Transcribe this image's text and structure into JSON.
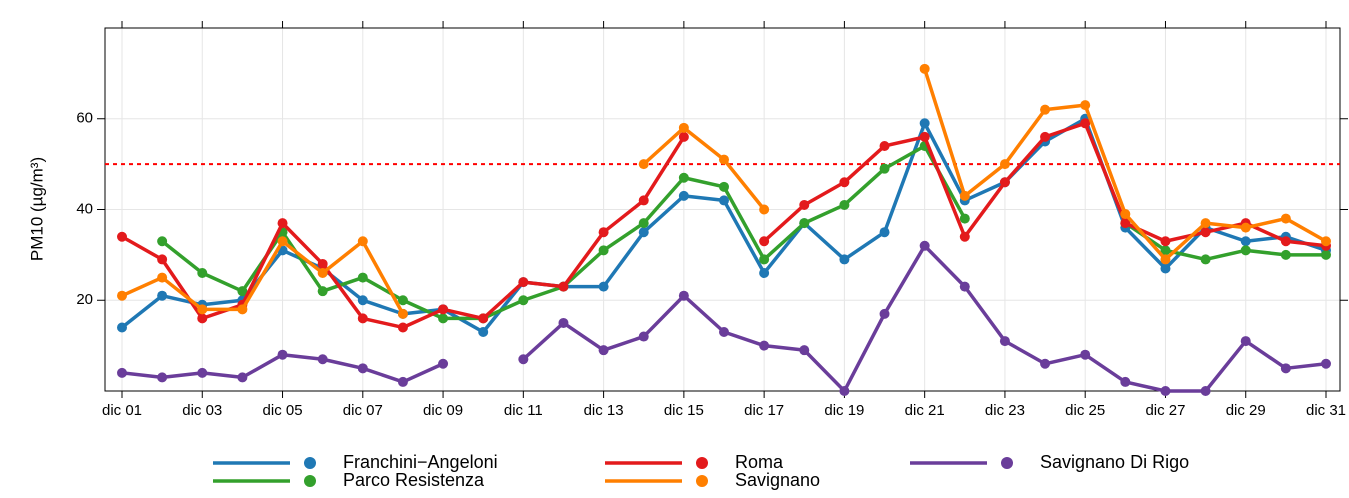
{
  "chart_data": {
    "type": "line",
    "y_label": "PM10 (µg/m³)",
    "categories": [
      "dic 01",
      null,
      "dic 03",
      null,
      "dic 05",
      null,
      "dic 07",
      null,
      "dic 09",
      null,
      "dic 11",
      null,
      "dic 13",
      null,
      "dic 15",
      null,
      "dic 17",
      null,
      "dic 19",
      null,
      "dic 21",
      null,
      "dic 23",
      null,
      "dic 25",
      null,
      "dic 27",
      null,
      "dic 29",
      null,
      "dic 31"
    ],
    "series": [
      {
        "name": "Franchini−Angeloni",
        "color": "#1f78b4",
        "values": [
          14,
          21,
          19,
          20,
          31,
          27,
          20,
          17,
          18,
          13,
          24,
          23,
          23,
          35,
          43,
          42,
          26,
          37,
          29,
          35,
          59,
          42,
          46,
          55,
          60,
          36,
          27,
          36,
          33,
          34,
          31
        ]
      },
      {
        "name": "Parco Resistenza",
        "color": "#33a02c",
        "values": [
          null,
          33,
          26,
          22,
          35,
          22,
          25,
          20,
          16,
          16,
          20,
          23,
          31,
          37,
          47,
          45,
          29,
          37,
          41,
          49,
          54,
          38,
          null,
          null,
          null,
          37,
          31,
          29,
          31,
          30,
          30
        ]
      },
      {
        "name": "Roma",
        "color": "#e31a1c",
        "values": [
          34,
          29,
          16,
          19,
          37,
          28,
          16,
          14,
          18,
          16,
          24,
          23,
          35,
          42,
          56,
          null,
          33,
          41,
          46,
          54,
          56,
          34,
          46,
          56,
          59,
          37,
          33,
          35,
          37,
          33,
          32
        ]
      },
      {
        "name": "Savignano",
        "color": "#ff7f00",
        "values": [
          21,
          25,
          18,
          18,
          33,
          26,
          33,
          17,
          null,
          null,
          null,
          null,
          null,
          50,
          58,
          51,
          40,
          null,
          null,
          null,
          71,
          43,
          50,
          62,
          63,
          39,
          29,
          37,
          36,
          38,
          33
        ]
      },
      {
        "name": "Savignano Di Rigo",
        "color": "#6a3d9a",
        "values": [
          4,
          3,
          4,
          3,
          8,
          7,
          5,
          2,
          6,
          null,
          7,
          15,
          9,
          12,
          21,
          13,
          10,
          9,
          0,
          17,
          32,
          23,
          11,
          6,
          8,
          2,
          0,
          0,
          11,
          5,
          6
        ]
      }
    ],
    "reference_line": {
      "value": 50,
      "color": "#ff0000"
    },
    "ylim": [
      0,
      80
    ],
    "yticks": [
      20,
      40,
      60
    ],
    "grid": true
  }
}
